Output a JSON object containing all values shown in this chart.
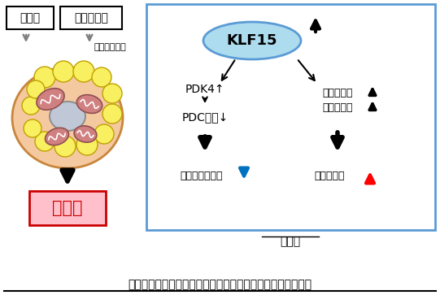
{
  "bg_color": "#ffffff",
  "border_color": "#5b9bd5",
  "title_text": "褐色脂肪細胞におけるエネルギー基質利用変換のメカニズム",
  "subtitle_text": "絶食時",
  "klf15_text": "KLF15",
  "klf15_ellipse_color": "#aedcef",
  "klf15_ellipse_edge": "#5b9bd5",
  "pdk4_text": "PDK4↑",
  "pdc_text": "PDC活性↓",
  "glucose_text": "グルコース利用",
  "fatty_text": "脂肪酸利用",
  "fatty_gene_line1": "脂肪酸酸化",
  "fatty_gene_line2": "関連遺伝子",
  "label_fatty_acid": "脂肪酸",
  "label_glucose": "グルコース",
  "label_brown_cell": "褐色脂肪細胞",
  "label_heat": "熱産生",
  "heat_box_color": "#ffc0cb",
  "heat_box_edge": "#cc0000",
  "cell_outer_color": "#f5c9a0",
  "cell_outer_edge": "#c8863c",
  "cell_nucleus_color": "#c0c8d8",
  "cell_nucleus_edge": "#909090",
  "mito_color": "#d08080",
  "mito_edge": "#905050",
  "yellow_droplet_color": "#f8f060",
  "yellow_droplet_edge": "#c0a000",
  "arrow_black": "#000000",
  "arrow_down_blue": "#0070c0",
  "arrow_up_red": "#ff0000",
  "arrow_gray": "#808080"
}
